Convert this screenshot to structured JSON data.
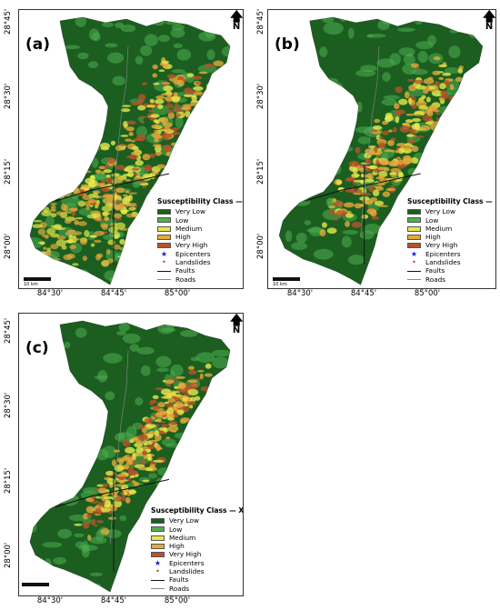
{
  "common": {
    "north_label": "N",
    "scale_label": "10 km",
    "y_ticks": [
      "28°45'",
      "28°30'",
      "28°15'",
      "28°00'"
    ],
    "x_ticks": [
      "84°30'",
      "84°45'",
      "85°00'"
    ],
    "legend_items": [
      {
        "label": "Very Low",
        "color": "#1b5e20"
      },
      {
        "label": "Low",
        "color": "#4caf50"
      },
      {
        "label": "Medium",
        "color": "#e6e84a"
      },
      {
        "label": "High",
        "color": "#e5a83a"
      },
      {
        "label": "Very High",
        "color": "#b5542a"
      }
    ],
    "symbol_items": [
      {
        "label": "Epicenters",
        "symbol": "★",
        "color": "#1a1adb"
      },
      {
        "label": "Landslides",
        "symbol": "•",
        "color": "#c0392b"
      }
    ],
    "line_items": [
      {
        "label": "Faults",
        "color": "#111111"
      },
      {
        "label": "Roads",
        "color": "#8a8a8a"
      }
    ]
  },
  "panels": [
    {
      "letter": "(a)",
      "legend_title": "Susceptibility Class — LR"
    },
    {
      "letter": "(b)",
      "legend_title": "Susceptibility Class — RF"
    },
    {
      "letter": "(c)",
      "legend_title": "Susceptibility Class — XGB"
    }
  ]
}
